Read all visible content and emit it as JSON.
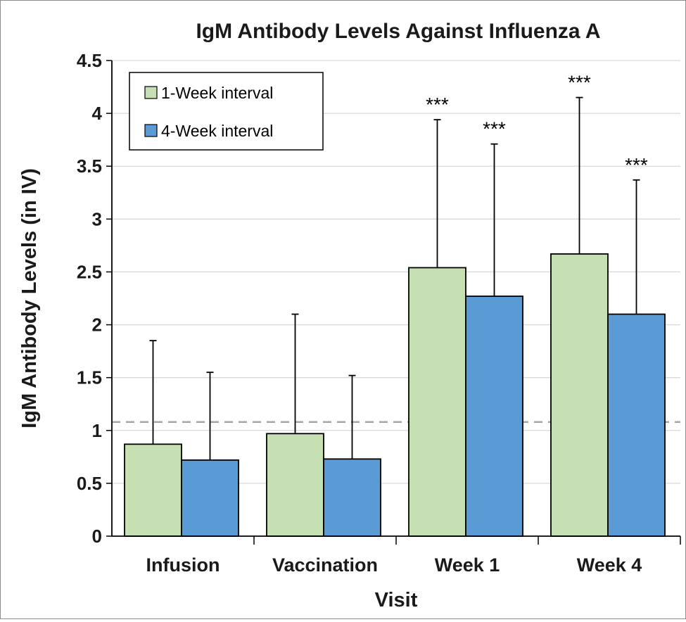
{
  "chart_data": {
    "type": "bar",
    "title": "IgM Antibody Levels Against Influenza A",
    "xlabel": "Visit",
    "ylabel": "IgM Antibody Levels (in IV)",
    "ylim": [
      0,
      4.5
    ],
    "yticks": [
      "0",
      "0.5",
      "1",
      "1.5",
      "2",
      "2.5",
      "3",
      "3.5",
      "4",
      "4.5"
    ],
    "grid": true,
    "legend_position": "top-left",
    "categories": [
      "Infusion",
      "Vaccination",
      "Week 1",
      "Week 4"
    ],
    "series": [
      {
        "name": "1-Week interval",
        "color": "#c6e0b4",
        "values": [
          0.87,
          0.97,
          2.54,
          2.67
        ],
        "error_upper": [
          1.85,
          2.1,
          3.94,
          4.15
        ],
        "annotations": [
          "",
          "",
          "***",
          "***"
        ]
      },
      {
        "name": "4-Week interval",
        "color": "#5b9bd5",
        "values": [
          0.72,
          0.73,
          2.27,
          2.1
        ],
        "error_upper": [
          1.55,
          1.52,
          3.71,
          3.37
        ],
        "annotations": [
          "",
          "",
          "***",
          "***"
        ]
      }
    ],
    "reference_line": {
      "y": 1.08,
      "style": "dashed",
      "color": "#a6a6a6"
    }
  }
}
